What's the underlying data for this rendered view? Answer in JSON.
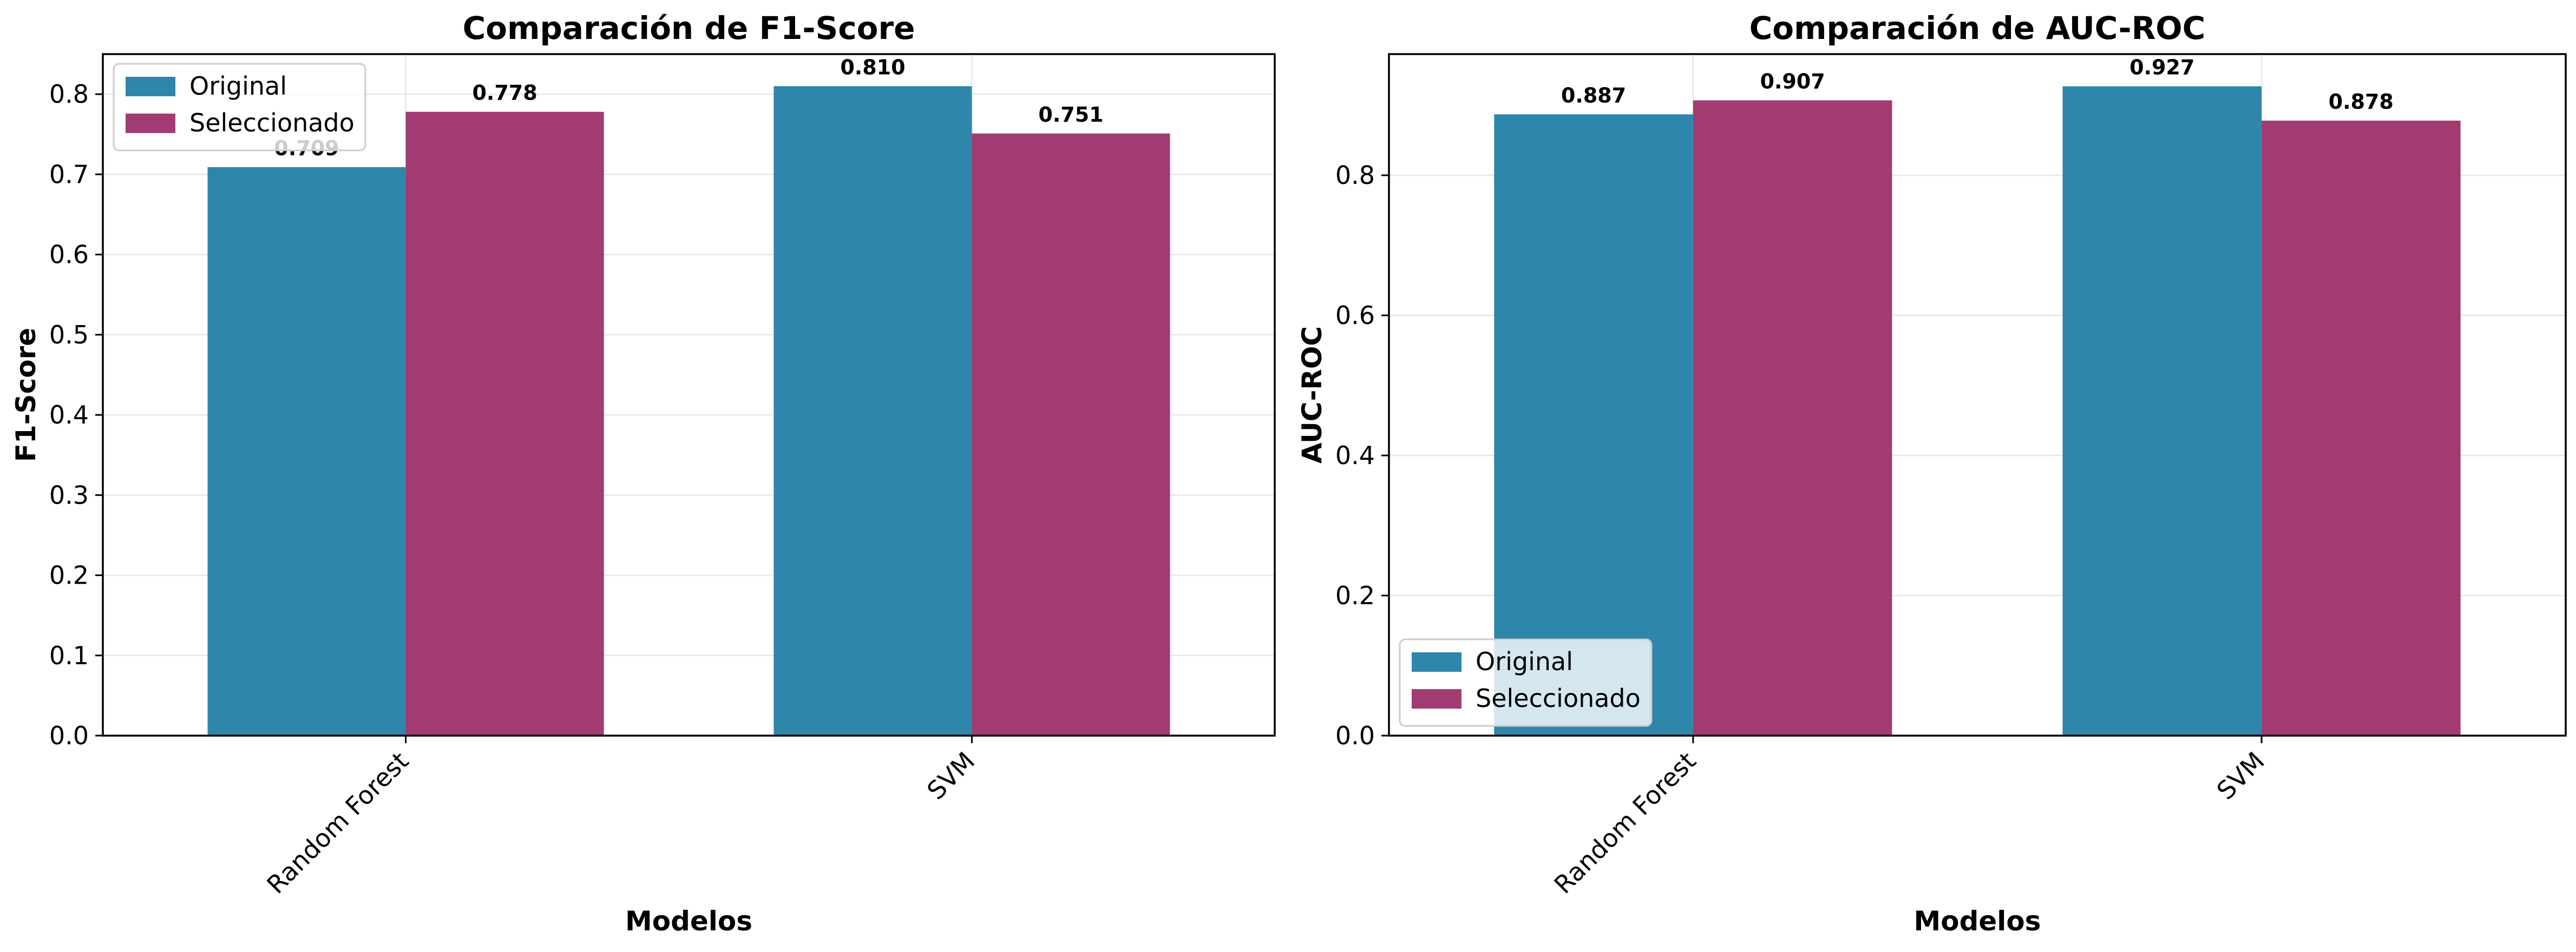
{
  "chart_data": [
    {
      "type": "bar",
      "title": "Comparación de F1-Score",
      "xlabel": "Modelos",
      "ylabel": "F1-Score",
      "categories": [
        "Random Forest",
        "SVM"
      ],
      "series": [
        {
          "name": "Original",
          "values": [
            0.709,
            0.81
          ],
          "labels": [
            "0.709",
            "0.810"
          ]
        },
        {
          "name": "Seleccionado",
          "values": [
            0.778,
            0.751
          ],
          "labels": [
            "0.778",
            "0.751"
          ]
        }
      ],
      "ylim": [
        0,
        0.85
      ],
      "yticks": [
        0.0,
        0.1,
        0.2,
        0.3,
        0.4,
        0.5,
        0.6,
        0.7,
        0.8
      ],
      "ytick_labels": [
        "0.0",
        "0.1",
        "0.2",
        "0.3",
        "0.4",
        "0.5",
        "0.6",
        "0.7",
        "0.8"
      ],
      "grid": true,
      "legend_position": "top-left"
    },
    {
      "type": "bar",
      "title": "Comparación de AUC-ROC",
      "xlabel": "Modelos",
      "ylabel": "AUC-ROC",
      "categories": [
        "Random Forest",
        "SVM"
      ],
      "series": [
        {
          "name": "Original",
          "values": [
            0.887,
            0.927
          ],
          "labels": [
            "0.887",
            "0.927"
          ]
        },
        {
          "name": "Seleccionado",
          "values": [
            0.907,
            0.878
          ],
          "labels": [
            "0.907",
            "0.878"
          ]
        }
      ],
      "ylim": [
        0,
        0.973
      ],
      "yticks": [
        0.0,
        0.2,
        0.4,
        0.6,
        0.8
      ],
      "ytick_labels": [
        "0.0",
        "0.2",
        "0.4",
        "0.6",
        "0.8"
      ],
      "grid": true,
      "legend_position": "bottom-left"
    }
  ],
  "colors": {
    "original": "#2E86AB",
    "seleccionado": "#A23B72",
    "grid": "#e6e6e6",
    "axis": "#000000"
  }
}
